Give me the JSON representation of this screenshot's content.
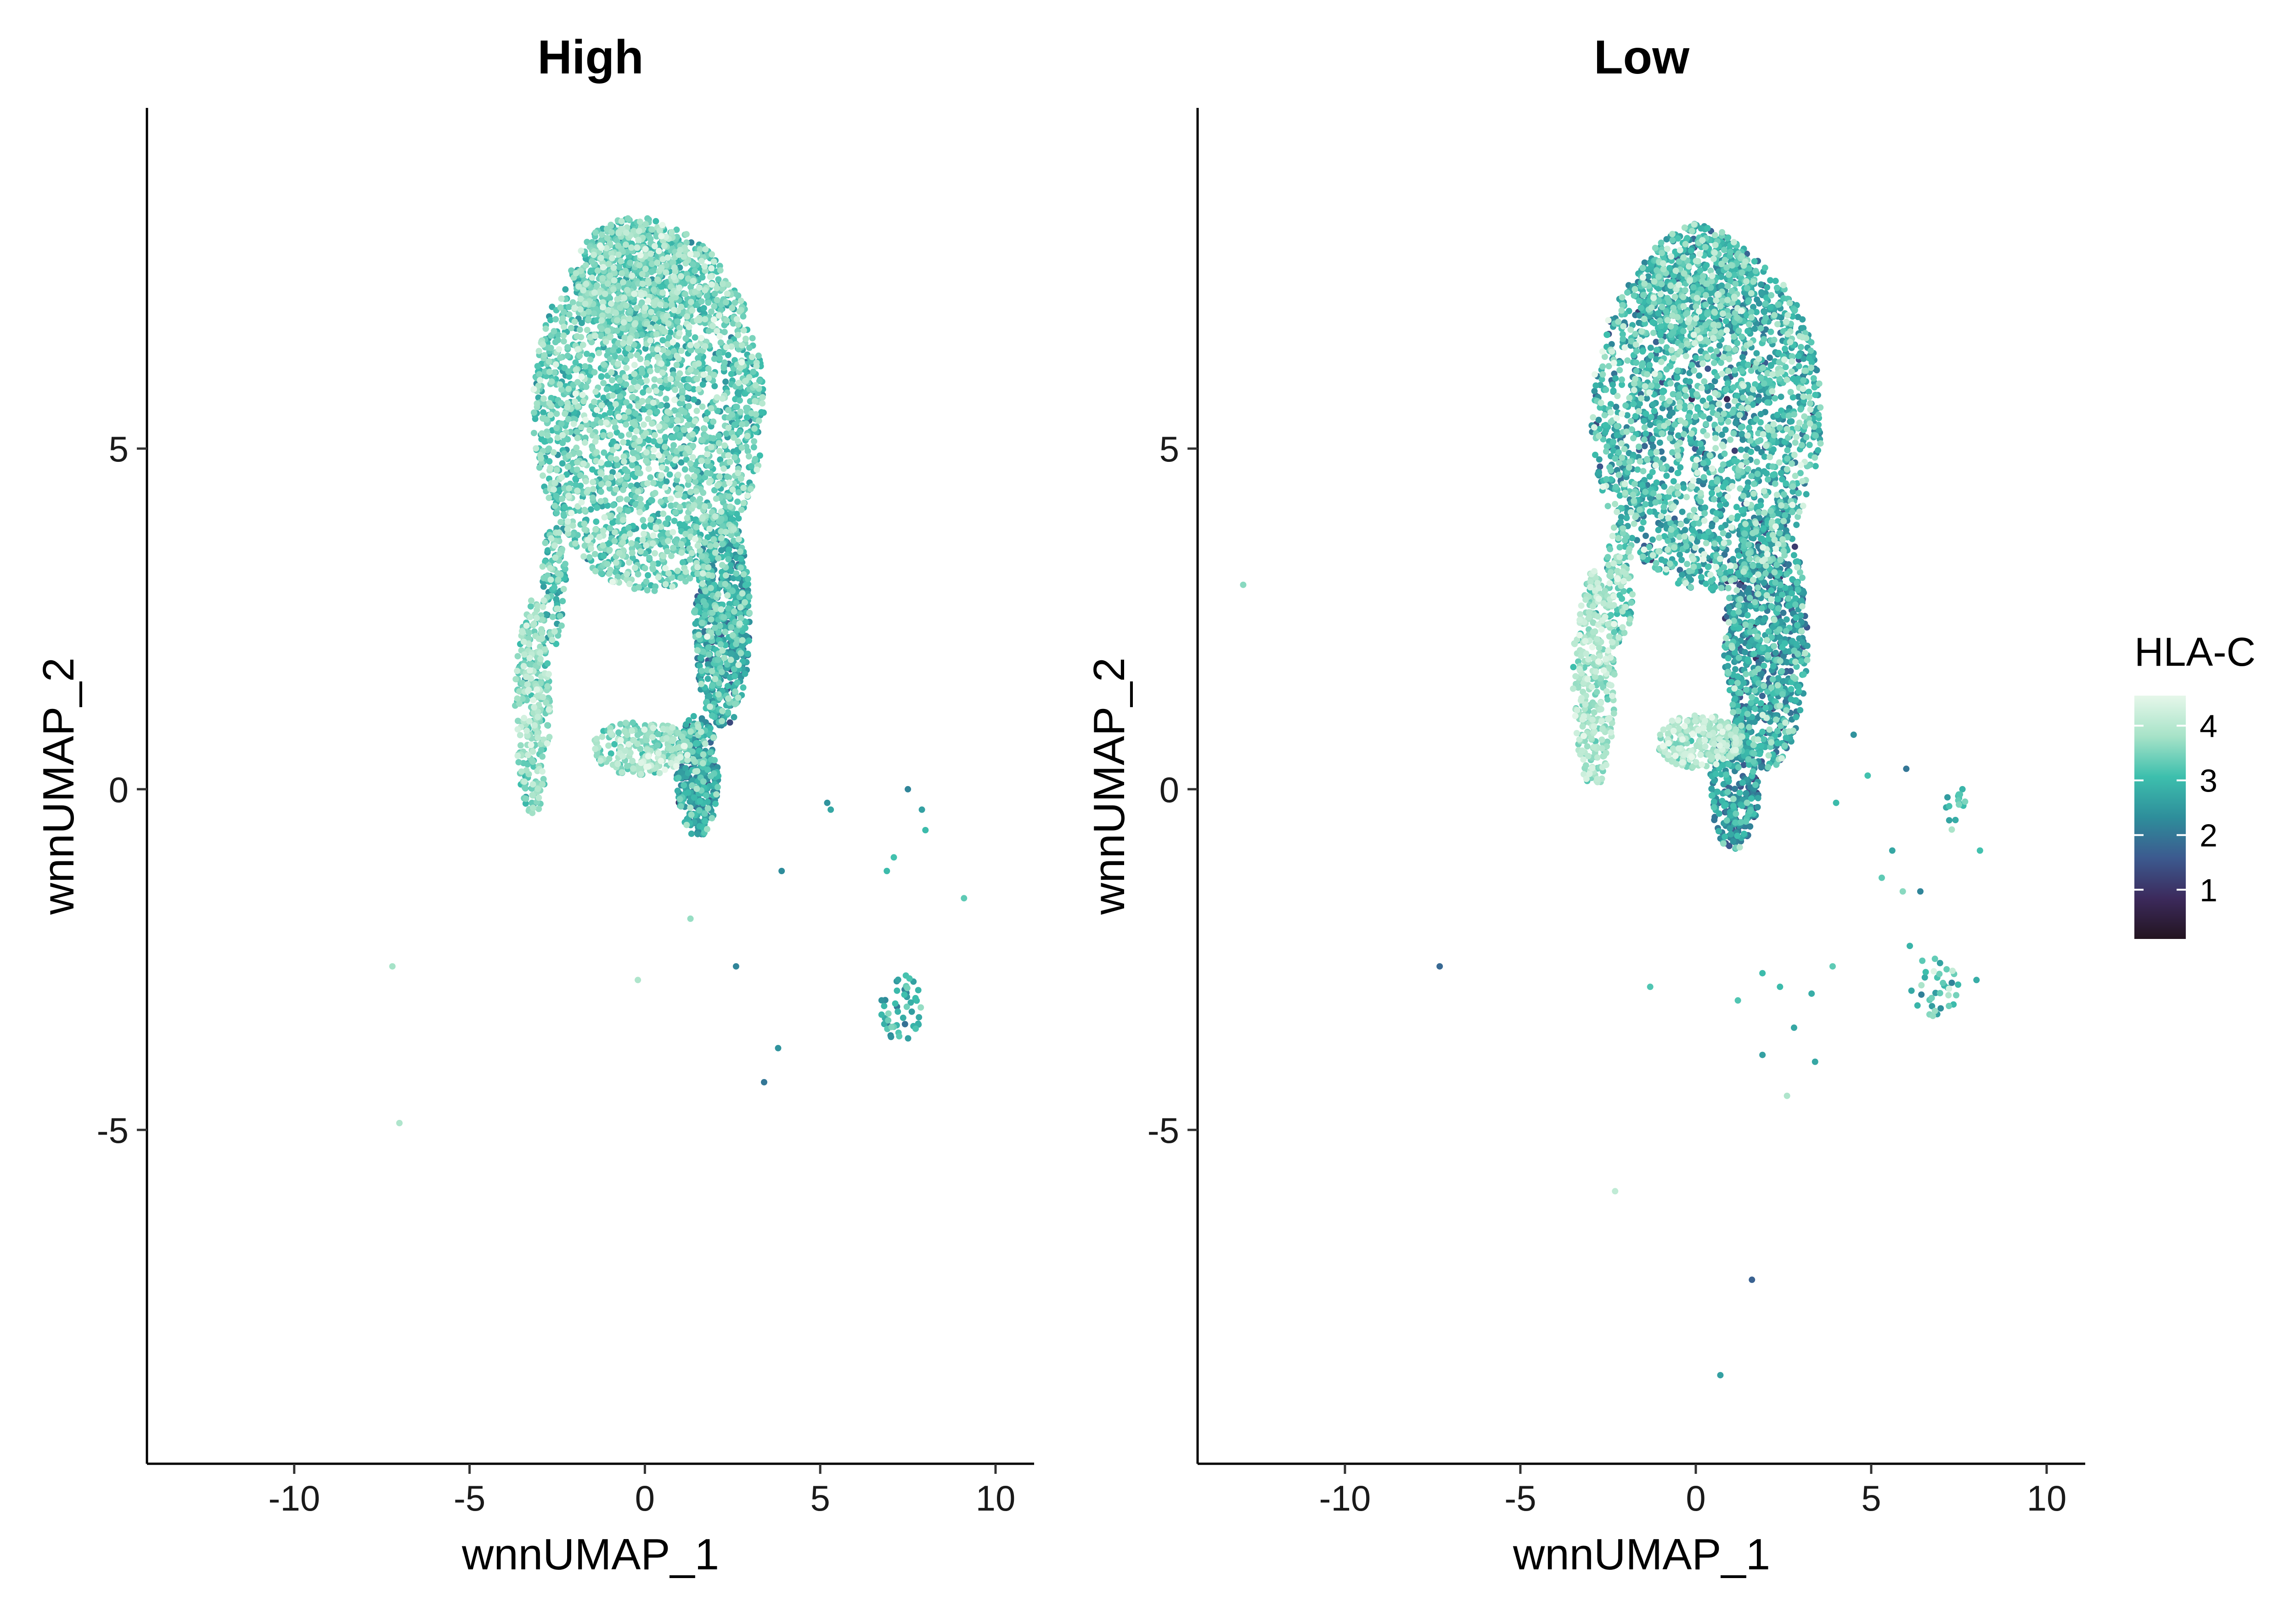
{
  "chart_data": {
    "type": "scatter",
    "legend": {
      "title": "HLA-C",
      "placement": "right",
      "range": [
        0.1,
        4.55
      ],
      "ticks": [
        1,
        2,
        3,
        4
      ],
      "colors": [
        "#231420",
        "#3c2a5c",
        "#3c5a8f",
        "#2e8e9b",
        "#3dbfad",
        "#a7e3c8",
        "#e6f7ea"
      ]
    },
    "panels": [
      {
        "title": "High",
        "xlabel": "wnnUMAP_1",
        "ylabel": "wnnUMAP_2",
        "xlim": [
          -14.2,
          11.1
        ],
        "ylim": [
          -9.9,
          10.0
        ],
        "xticks": [
          -10,
          -5,
          0,
          5,
          10
        ],
        "yticks": [
          -5,
          0,
          5
        ],
        "grid": false,
        "seed": 11,
        "clusters": [
          {
            "cx": 0.1,
            "cy": 5.6,
            "rx": 3.3,
            "ry": 2.7,
            "n": 2600,
            "mean": 3.35,
            "sd": 0.45
          },
          {
            "cx": -0.3,
            "cy": 7.5,
            "rx": 1.7,
            "ry": 0.9,
            "n": 500,
            "mean": 3.4,
            "sd": 0.4
          },
          {
            "cx": 2.2,
            "cy": 2.5,
            "rx": 0.8,
            "ry": 1.6,
            "n": 700,
            "mean": 2.8,
            "sd": 0.6
          },
          {
            "cx": 1.5,
            "cy": 0.2,
            "rx": 0.6,
            "ry": 0.9,
            "n": 350,
            "mean": 2.6,
            "sd": 0.6
          },
          {
            "cx": -3.2,
            "cy": 1.2,
            "rx": 0.5,
            "ry": 1.6,
            "n": 320,
            "mean": 3.6,
            "sd": 0.4
          },
          {
            "cx": -0.1,
            "cy": 0.6,
            "rx": 1.4,
            "ry": 0.4,
            "n": 260,
            "mean": 3.7,
            "sd": 0.4
          },
          {
            "cx": -2.6,
            "cy": 3.0,
            "rx": 0.35,
            "ry": 0.9,
            "n": 120,
            "mean": 3.2,
            "sd": 0.5
          },
          {
            "cx": 7.3,
            "cy": -3.2,
            "rx": 0.6,
            "ry": 0.5,
            "n": 50,
            "mean": 2.9,
            "sd": 0.5
          }
        ],
        "outliers": [
          {
            "x": -7.2,
            "y": -2.6,
            "v": 3.8
          },
          {
            "x": -7.0,
            "y": -4.9,
            "v": 3.9
          },
          {
            "x": -0.2,
            "y": -2.8,
            "v": 3.9
          },
          {
            "x": 1.3,
            "y": -1.9,
            "v": 3.7
          },
          {
            "x": 2.6,
            "y": -2.6,
            "v": 2.2
          },
          {
            "x": 3.4,
            "y": -4.3,
            "v": 2.0
          },
          {
            "x": 3.8,
            "y": -3.8,
            "v": 2.4
          },
          {
            "x": 3.9,
            "y": -1.2,
            "v": 2.3
          },
          {
            "x": 5.2,
            "y": -0.2,
            "v": 2.4
          },
          {
            "x": 5.3,
            "y": -0.3,
            "v": 2.7
          },
          {
            "x": 6.9,
            "y": -1.2,
            "v": 3.0
          },
          {
            "x": 7.5,
            "y": 0.0,
            "v": 2.2
          },
          {
            "x": 7.9,
            "y": -0.3,
            "v": 2.6
          },
          {
            "x": 8.0,
            "y": -0.6,
            "v": 3.0
          },
          {
            "x": 9.1,
            "y": -1.6,
            "v": 3.3
          },
          {
            "x": 7.1,
            "y": -1.0,
            "v": 3.1
          }
        ]
      },
      {
        "title": "Low",
        "xlabel": "wnnUMAP_1",
        "ylabel": "wnnUMAP_2",
        "xlim": [
          -14.2,
          11.1
        ],
        "ylim": [
          -9.9,
          10.0
        ],
        "xticks": [
          -10,
          -5,
          0,
          5,
          10
        ],
        "yticks": [
          -5,
          0,
          5
        ],
        "grid": false,
        "seed": 29,
        "clusters": [
          {
            "cx": 0.3,
            "cy": 5.5,
            "rx": 3.3,
            "ry": 2.6,
            "n": 2200,
            "mean": 2.9,
            "sd": 0.65
          },
          {
            "cx": 0.0,
            "cy": 7.4,
            "rx": 1.6,
            "ry": 0.9,
            "n": 420,
            "mean": 3.0,
            "sd": 0.6
          },
          {
            "cx": 2.0,
            "cy": 2.2,
            "rx": 1.2,
            "ry": 1.9,
            "n": 900,
            "mean": 2.6,
            "sd": 0.65
          },
          {
            "cx": 1.1,
            "cy": 0.0,
            "rx": 0.7,
            "ry": 0.9,
            "n": 280,
            "mean": 2.4,
            "sd": 0.65
          },
          {
            "cx": -2.9,
            "cy": 1.6,
            "rx": 0.6,
            "ry": 1.6,
            "n": 350,
            "mean": 3.8,
            "sd": 0.35
          },
          {
            "cx": 0.1,
            "cy": 0.7,
            "rx": 1.2,
            "ry": 0.4,
            "n": 240,
            "mean": 3.9,
            "sd": 0.35
          },
          {
            "cx": -2.2,
            "cy": 3.0,
            "rx": 0.4,
            "ry": 0.9,
            "n": 120,
            "mean": 3.4,
            "sd": 0.5
          },
          {
            "cx": 7.4,
            "cy": -0.3,
            "rx": 0.3,
            "ry": 0.4,
            "n": 16,
            "mean": 3.3,
            "sd": 0.4
          },
          {
            "cx": 6.8,
            "cy": -2.9,
            "rx": 0.7,
            "ry": 0.5,
            "n": 35,
            "mean": 3.1,
            "sd": 0.6
          }
        ],
        "outliers": [
          {
            "x": -12.9,
            "y": 3.0,
            "v": 3.6
          },
          {
            "x": -7.3,
            "y": -2.6,
            "v": 1.8
          },
          {
            "x": -2.3,
            "y": -5.9,
            "v": 4.1
          },
          {
            "x": 1.6,
            "y": -7.2,
            "v": 1.7
          },
          {
            "x": 0.7,
            "y": -8.6,
            "v": 2.6
          },
          {
            "x": 2.6,
            "y": -4.5,
            "v": 3.9
          },
          {
            "x": 1.9,
            "y": -3.9,
            "v": 2.6
          },
          {
            "x": 3.4,
            "y": -4.0,
            "v": 2.7
          },
          {
            "x": 1.2,
            "y": -3.1,
            "v": 3.2
          },
          {
            "x": 1.9,
            "y": -2.7,
            "v": 3.0
          },
          {
            "x": 2.4,
            "y": -2.9,
            "v": 3.0
          },
          {
            "x": 3.3,
            "y": -3.0,
            "v": 2.8
          },
          {
            "x": 3.9,
            "y": -2.6,
            "v": 3.3
          },
          {
            "x": 4.0,
            "y": -0.2,
            "v": 3.0
          },
          {
            "x": 4.9,
            "y": 0.2,
            "v": 3.1
          },
          {
            "x": 5.3,
            "y": -1.3,
            "v": 3.3
          },
          {
            "x": 5.9,
            "y": -1.5,
            "v": 3.6
          },
          {
            "x": 6.1,
            "y": -2.3,
            "v": 2.9
          },
          {
            "x": 6.4,
            "y": -1.5,
            "v": 2.2
          },
          {
            "x": 6.0,
            "y": 0.3,
            "v": 2.0
          },
          {
            "x": 5.6,
            "y": -0.9,
            "v": 2.7
          },
          {
            "x": 7.6,
            "y": 0.0,
            "v": 2.9
          },
          {
            "x": 8.1,
            "y": -0.9,
            "v": 3.1
          },
          {
            "x": 8.0,
            "y": -2.8,
            "v": 2.8
          },
          {
            "x": -1.3,
            "y": -2.9,
            "v": 3.2
          },
          {
            "x": 4.5,
            "y": 0.8,
            "v": 2.4
          },
          {
            "x": 2.8,
            "y": -3.5,
            "v": 2.7
          }
        ]
      }
    ]
  }
}
